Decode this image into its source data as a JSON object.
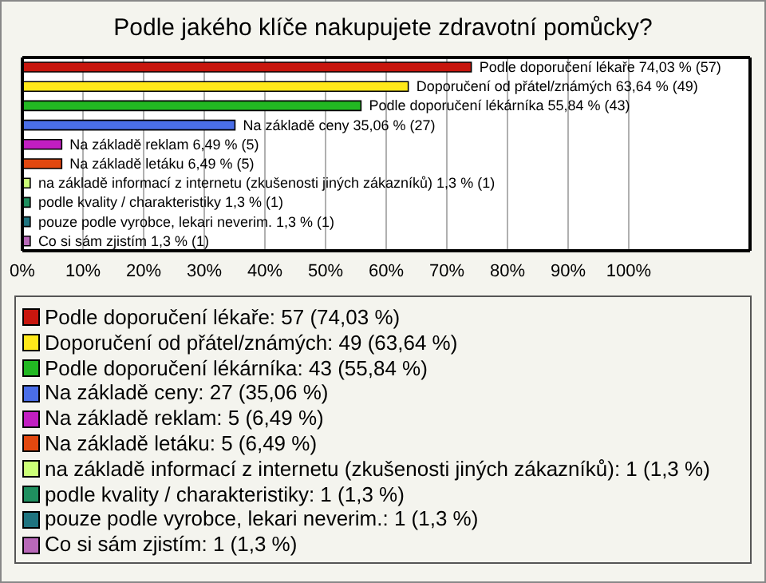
{
  "chart_data": {
    "type": "bar",
    "orientation": "horizontal",
    "title": "Podle jakého klíče nakupujete zdravotní pomůcky?",
    "categories": [
      null,
      null,
      null,
      null,
      null,
      null,
      null,
      null,
      null,
      null
    ],
    "values": [
      74.03,
      63.64,
      55.84,
      35.06,
      6.49,
      6.49,
      1.3,
      1.3,
      1.3,
      1.3
    ],
    "colors": [
      "#c8160e",
      "#ffe81a",
      "#22b822",
      "#4a6ee8",
      "#c21ec2",
      "#e2480f",
      "#ccff77",
      "#1f8f5f",
      "#1f7480",
      "#b868b8"
    ],
    "value_labels": [
      "Podle doporučení lékaře 74,03 % (57)",
      "Doporučení od přátel/známých 63,64 % (49)",
      "Podle doporučení lékárníka 55,84 % (43)",
      "Na základě ceny 35,06 % (27)",
      "Na základě reklam 6,49 % (5)",
      "Na základě letáku 6,49 % (5)",
      "na základě informací z internetu (zkušenosti jiných zákazníků) 1,3 % (1)",
      "podle kvality / charakteristiky 1,3 % (1)",
      "pouze podle vyrobce, lekari neverim. 1,3 % (1)",
      "Co si sám zjistím 1,3 % (1)"
    ],
    "xlim": [
      0,
      120
    ],
    "xticks": [
      {
        "value": 0,
        "label": "0%"
      },
      {
        "value": 10,
        "label": "10%"
      },
      {
        "value": 20,
        "label": "20%"
      },
      {
        "value": 30,
        "label": "30%"
      },
      {
        "value": 40,
        "label": "40%"
      },
      {
        "value": 50,
        "label": "50%"
      },
      {
        "value": 60,
        "label": "60%"
      },
      {
        "value": 70,
        "label": "70%"
      },
      {
        "value": 80,
        "label": "80%"
      },
      {
        "value": 90,
        "label": "90%"
      },
      {
        "value": 100,
        "label": "100%"
      }
    ],
    "tick_labels": "x",
    "grid": "x",
    "annotations": [
      "Podle doporučení lékaře: 57 (74,03 %)",
      "Doporučení od přátel/známých: 49 (63,64 %)",
      "Podle doporučení lékárníka: 43 (55,84 %)",
      "Na základě ceny: 27 (35,06 %)",
      "Na základě reklam: 5 (6,49 %)",
      "Na základě letáku: 5 (6,49 %)",
      "na základě informací z internetu (zkušenosti jiných zákazníků): 1 (1,3 %)",
      "podle kvality / charakteristiky: 1 (1,3 %)",
      "pouze podle vyrobce, lekari neverim.: 1 (1,3 %)",
      "Co si sám zjistím: 1 (1,3 %)"
    ]
  }
}
